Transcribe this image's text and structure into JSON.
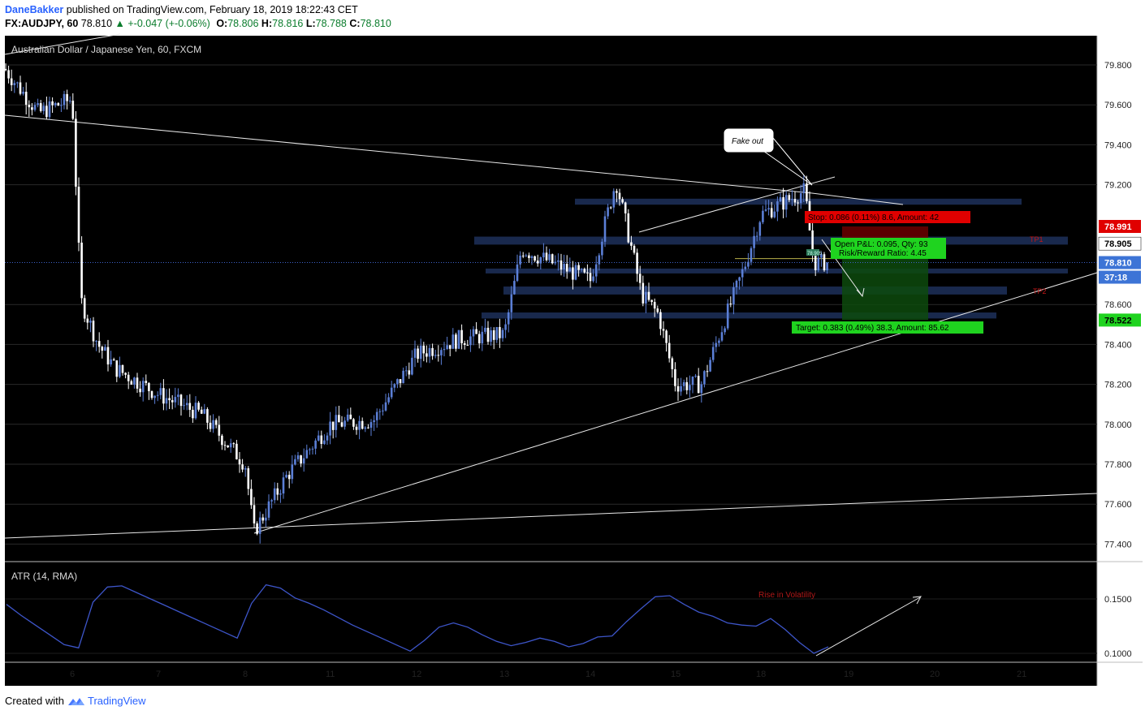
{
  "header": {
    "author": "DaneBakker",
    "published_text": "published on TradingView.com, February 18, 2019 18:22:43 CET",
    "symbol": "FX:AUDJPY, 60",
    "last": "78.810",
    "change": "+-0.047 (+-0.06%)",
    "open_label": "O:",
    "open": "78.806",
    "high_label": "H:",
    "high": "78.816",
    "low_label": "L:",
    "low": "78.788",
    "close_label": "C:",
    "close": "78.810"
  },
  "footer": {
    "created_with": "Created with",
    "brand": "TradingView"
  },
  "colors": {
    "background": "#000000",
    "candle": "#5b7fd6",
    "candle_up": "#ffffff",
    "zone": "#1c2d55",
    "stop": "#e00000",
    "target": "#1fd31f",
    "atr_line": "#3d55c9",
    "accent": "#2962ff"
  },
  "chart_data": [
    {
      "type": "candlestick",
      "title": "Australian Dollar / Japanese Yen, 60, FXCM",
      "x_ticks": [
        "6",
        "7",
        "8",
        "11",
        "12",
        "13",
        "14",
        "15",
        "18",
        "19",
        "20",
        "21"
      ],
      "y_ticks": [
        "79.800",
        "79.600",
        "79.400",
        "79.200",
        "78.600",
        "78.400",
        "78.200",
        "78.000",
        "77.800",
        "77.600",
        "77.400"
      ],
      "ylim": [
        77.29,
        79.91
      ],
      "price_path": [
        {
          "x": "5",
          "close": 79.78
        },
        {
          "x": "5.5",
          "close": 79.56
        },
        {
          "x": "6",
          "close": 79.63
        },
        {
          "x": "6.1",
          "close": 78.62
        },
        {
          "x": "6.3",
          "close": 78.4
        },
        {
          "x": "6.5",
          "close": 78.28
        },
        {
          "x": "7",
          "close": 78.15
        },
        {
          "x": "7.5",
          "close": 78.05
        },
        {
          "x": "8",
          "close": 77.8
        },
        {
          "x": "8.1",
          "close": 77.46
        },
        {
          "x": "8.5",
          "close": 77.75
        },
        {
          "x": "11",
          "close": 78.0
        },
        {
          "x": "11.5",
          "close": 78.02
        },
        {
          "x": "12",
          "close": 78.35
        },
        {
          "x": "12.5",
          "close": 78.43
        },
        {
          "x": "13",
          "close": 78.45
        },
        {
          "x": "13.2",
          "close": 78.88
        },
        {
          "x": "13.6",
          "close": 78.8
        },
        {
          "x": "14",
          "close": 78.72
        },
        {
          "x": "14.3",
          "close": 79.22
        },
        {
          "x": "14.5",
          "close": 78.85
        },
        {
          "x": "14.6",
          "close": 78.65
        },
        {
          "x": "14.8",
          "close": 78.55
        },
        {
          "x": "15",
          "close": 78.2
        },
        {
          "x": "15.3",
          "close": 78.2
        },
        {
          "x": "15.6",
          "close": 78.55
        },
        {
          "x": "15.8",
          "close": 78.78
        },
        {
          "x": "18",
          "close": 79.05
        },
        {
          "x": "18.5",
          "close": 79.17
        },
        {
          "x": "18.6",
          "close": 78.81
        }
      ],
      "price_labels": [
        {
          "text": "78.991",
          "role": "stop"
        },
        {
          "text": "78.905",
          "role": "entry"
        },
        {
          "text": "78.810",
          "role": "last"
        },
        {
          "text": "37:18",
          "role": "countdown"
        },
        {
          "text": "78.522",
          "role": "target"
        }
      ],
      "annotations": {
        "fake_out": "Fake out",
        "stop": "Stop: 0.086 (0.11%) 8.6, Amount: 42",
        "open_pl": "Open P&L: 0.095, Qty: 93",
        "risk_reward": "Risk/Reward Ratio: 4.45",
        "target": "Target: 0.383 (0.49%) 38.3, Amount: 85.62",
        "tp1": "TP1",
        "tp2": "TP2",
        "position_flag": "78.905"
      },
      "zones": [
        {
          "low": 79.1,
          "high": 79.13
        },
        {
          "low": 78.9,
          "high": 78.94
        },
        {
          "low": 78.76,
          "high": 78.78
        },
        {
          "low": 78.65,
          "high": 78.69
        },
        {
          "low": 78.53,
          "high": 78.56
        }
      ],
      "position": {
        "entry": 78.905,
        "stop": 78.991,
        "target": 78.522
      },
      "grid": true
    },
    {
      "type": "line",
      "title": "ATR (14, RMA)",
      "y_ticks": [
        "0.1500",
        "0.1000"
      ],
      "ylim": [
        0.09,
        0.175
      ],
      "series": [
        {
          "values": [
            0.145,
            0.135,
            0.126,
            0.117,
            0.108,
            0.105,
            0.147,
            0.161,
            0.162,
            0.156,
            0.15,
            0.144,
            0.138,
            0.132,
            0.126,
            0.12,
            0.114,
            0.146,
            0.163,
            0.16,
            0.151,
            0.146,
            0.14,
            0.133,
            0.126,
            0.12,
            0.114,
            0.108,
            0.102,
            0.112,
            0.124,
            0.128,
            0.124,
            0.117,
            0.111,
            0.107,
            0.11,
            0.114,
            0.111,
            0.106,
            0.109,
            0.115,
            0.116,
            0.129,
            0.141,
            0.152,
            0.153,
            0.145,
            0.138,
            0.134,
            0.128,
            0.126,
            0.125,
            0.132,
            0.122,
            0.11,
            0.1,
            0.106
          ]
        }
      ],
      "annotation": "Rise in Volatility"
    }
  ]
}
